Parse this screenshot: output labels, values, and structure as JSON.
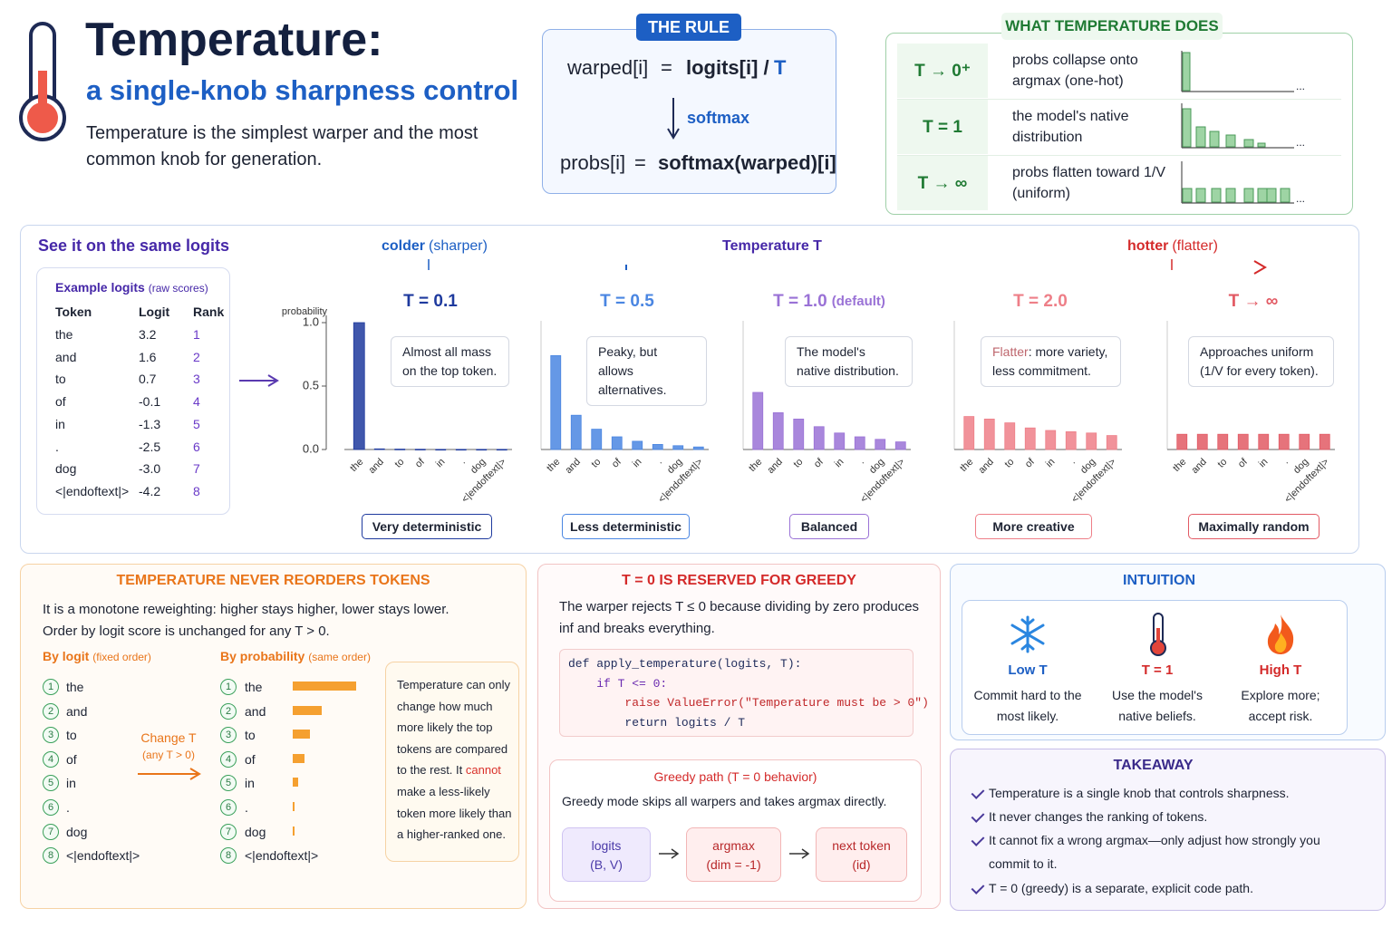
{
  "header": {
    "title": "Temperature:",
    "subtitle": "a single-knob sharpness control",
    "description": "Temperature is the simplest warper and the most common knob for generation."
  },
  "rule": {
    "badge": "THE RULE",
    "formula1": [
      "warped[i]",
      "=",
      "logits[i] /",
      "T"
    ],
    "arrow_label": "softmax",
    "formula2": [
      "probs[i]",
      "=",
      "softmax(warped)[i]"
    ]
  },
  "what_it_does": {
    "title": "WHAT TEMPERATURE DOES",
    "ellipsis": "...",
    "rows": [
      {
        "label": "T → 0⁺",
        "text": "probs collapse onto argmax (one-hot)"
      },
      {
        "label": "T = 1",
        "text": "the model's native distribution"
      },
      {
        "label": "T → ∞",
        "text": "probs flatten toward 1/V (uniform)"
      }
    ]
  },
  "same_logits": {
    "title": "See it on the same logits",
    "example": {
      "title": "Example logits",
      "note": "(raw scores)",
      "columns": [
        "Token",
        "Logit",
        "Rank"
      ],
      "rows": [
        [
          "the",
          "3.2",
          "1"
        ],
        [
          "and",
          "1.6",
          "2"
        ],
        [
          "to",
          "0.7",
          "3"
        ],
        [
          "of",
          "-0.1",
          "4"
        ],
        [
          "in",
          "-1.3",
          "5"
        ],
        [
          ".",
          "-2.5",
          "6"
        ],
        [
          "dog",
          "-3.0",
          "7"
        ],
        [
          "<|endoftext|>",
          "-4.2",
          "8"
        ]
      ]
    },
    "axis": {
      "cold": "colder",
      "cold_note": "(sharper)",
      "label": "Temperature T",
      "hot": "hotter",
      "hot_note": "(flatter)"
    }
  },
  "chart_data": [
    {
      "type": "bar",
      "title": "T = 0.1",
      "annotation": "Almost all mass on the top token.",
      "badge": "Very deterministic",
      "color": "#1e3a9e",
      "ylabel": "probability",
      "ylim": [
        0,
        1.0
      ],
      "yticks": [
        {
          "value": 0,
          "label": "0.0"
        },
        {
          "value": 0.5,
          "label": "0.5"
        },
        {
          "value": 1.0,
          "label": "1.0"
        }
      ],
      "categories": [
        "the",
        "and",
        "to",
        "of",
        "in",
        ".",
        "dog",
        "<|endoftext|>"
      ],
      "values": [
        1.0,
        0.005,
        0.003,
        0.002,
        0.001,
        0.001,
        0.001,
        0.001
      ]
    },
    {
      "type": "bar",
      "title": "T = 0.5",
      "annotation": "Peaky, but allows alternatives.",
      "badge": "Less deterministic",
      "color": "#4a86e2",
      "ylim": [
        0,
        1.0
      ],
      "categories": [
        "the",
        "and",
        "to",
        "of",
        "in",
        ".",
        "dog",
        "<|endoftext|>"
      ],
      "values": [
        0.74,
        0.27,
        0.16,
        0.1,
        0.065,
        0.04,
        0.03,
        0.02
      ]
    },
    {
      "type": "bar",
      "title": "T = 1.0",
      "title_note": "(default)",
      "annotation": "The model's native distribution.",
      "badge": "Balanced",
      "color": "#9a72d6",
      "ylim": [
        0,
        1.0
      ],
      "categories": [
        "the",
        "and",
        "to",
        "of",
        "in",
        ".",
        "dog",
        "<|endoftext|>"
      ],
      "values": [
        0.45,
        0.29,
        0.24,
        0.18,
        0.13,
        0.1,
        0.08,
        0.06
      ]
    },
    {
      "type": "bar",
      "title": "T = 2.0",
      "annotation_highlight": "Flatter",
      "annotation": ": more variety, less commitment.",
      "badge": "More creative",
      "color": "#ee7f88",
      "ylim": [
        0,
        1.0
      ],
      "categories": [
        "the",
        "and",
        "to",
        "of",
        "in",
        ".",
        "dog",
        "<|endoftext|>"
      ],
      "values": [
        0.26,
        0.24,
        0.21,
        0.17,
        0.15,
        0.14,
        0.13,
        0.11
      ]
    },
    {
      "type": "bar",
      "title": "T → ∞",
      "annotation": "Approaches uniform (1/V for every token).",
      "badge": "Maximally random",
      "color": "#e25a64",
      "ylim": [
        0,
        1.0
      ],
      "categories": [
        "the",
        "and",
        "to",
        "of",
        "in",
        ".",
        "dog",
        "<|endoftext|>"
      ],
      "values": [
        0.12,
        0.12,
        0.12,
        0.12,
        0.12,
        0.12,
        0.12,
        0.12
      ]
    }
  ],
  "reorders": {
    "title": "TEMPERATURE NEVER REORDERS TOKENS",
    "lines": [
      "It is a monotone reweighting: higher stays higher, lower stays lower.",
      "Order by logit score is unchanged for any T > 0."
    ],
    "by_logit": "By logit",
    "by_logit_note": "(fixed order)",
    "by_prob": "By probability",
    "by_prob_note": "(same order)",
    "ranks": [
      "1",
      "2",
      "3",
      "4",
      "5",
      "6",
      "7",
      "8"
    ],
    "tokens": [
      "the",
      "and",
      "to",
      "of",
      "in",
      ".",
      "dog",
      "<|endoftext|>"
    ],
    "change": "Change T",
    "change_note": "(any T > 0)",
    "note": [
      "Temperature can only change how much more likely the top tokens are compared to the rest. It ",
      "cannot",
      " make a less-likely token more likely than a higher-ranked one."
    ]
  },
  "greedy": {
    "title": "T = 0 IS RESERVED FOR GREEDY",
    "text": "The warper rejects T ≤ 0 because dividing by zero produces inf and breaks everything.",
    "code": [
      "def apply_temperature(logits, T):",
      "    if T <= 0:",
      "        raise ValueError(\"Temperature must be > 0\")",
      "        return logits / T"
    ],
    "path_title": "Greedy path (T = 0 behavior)",
    "path_text": "Greedy mode skips all warpers and takes argmax directly.",
    "flow": [
      {
        "name": "logits",
        "detail": "(B, V)"
      },
      {
        "name": "argmax",
        "detail": "(dim = -1)"
      },
      {
        "name": "next token",
        "detail": "(id)"
      }
    ]
  },
  "intuition": {
    "title": "INTUITION",
    "items": [
      {
        "label": "Low T",
        "text": "Commit hard to the most likely."
      },
      {
        "label": "T = 1",
        "text": "Use the model's native beliefs."
      },
      {
        "label": "High T",
        "text": "Explore more; accept risk."
      }
    ]
  },
  "takeaway": {
    "title": "TAKEAWAY",
    "items": [
      "Temperature is a single knob that controls sharpness.",
      "It never changes the ranking of tokens.",
      "It cannot fix a wrong argmax—only adjust how strongly you commit to it.",
      "T = 0 (greedy) is a separate, explicit code path."
    ]
  }
}
